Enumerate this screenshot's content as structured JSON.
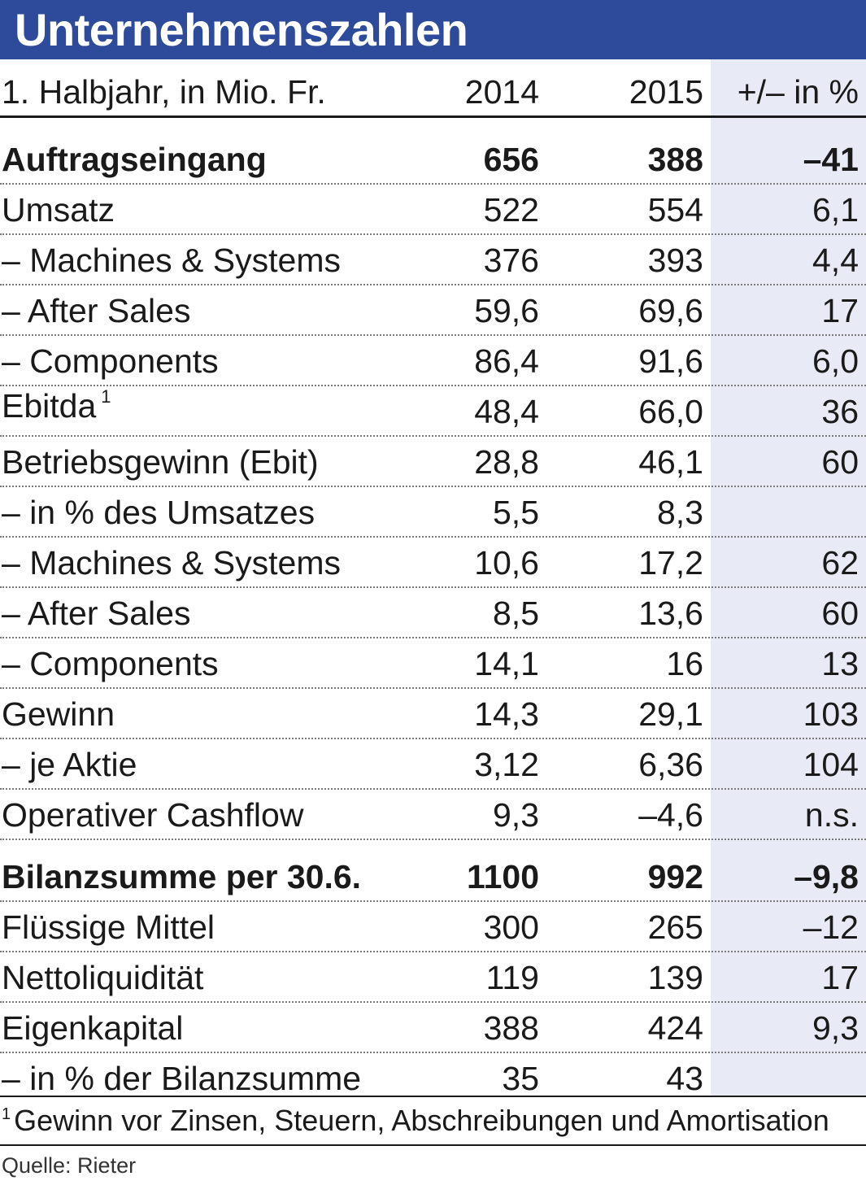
{
  "title": "Unternehmenszahlen",
  "header": {
    "label": "1. Halbjahr, in Mio. Fr.",
    "col_2014": "2014",
    "col_2015": "2015",
    "col_change": "+/– in %"
  },
  "rows": [
    {
      "label": "Auftragseingang",
      "v2014": "656",
      "v2015": "388",
      "change": "–41",
      "bold": true
    },
    {
      "label": "Umsatz",
      "v2014": "522",
      "v2015": "554",
      "change": "6,1"
    },
    {
      "label": "– Machines & Systems",
      "v2014": "376",
      "v2015": "393",
      "change": "4,4"
    },
    {
      "label": "– After Sales",
      "v2014": "59,6",
      "v2015": "69,6",
      "change": "17"
    },
    {
      "label": "– Components",
      "v2014": "86,4",
      "v2015": "91,6",
      "change": "6,0"
    },
    {
      "label": "Ebitda",
      "sup": "1",
      "v2014": "48,4",
      "v2015": "66,0",
      "change": "36"
    },
    {
      "label": "Betriebsgewinn (Ebit)",
      "v2014": "28,8",
      "v2015": "46,1",
      "change": "60"
    },
    {
      "label": "– in % des Umsatzes",
      "v2014": "5,5",
      "v2015": "8,3",
      "change": ""
    },
    {
      "label": "– Machines & Systems",
      "v2014": "10,6",
      "v2015": "17,2",
      "change": "62"
    },
    {
      "label": "– After Sales",
      "v2014": "8,5",
      "v2015": "13,6",
      "change": "60"
    },
    {
      "label": "– Components",
      "v2014": "14,1",
      "v2015": "16",
      "change": "13"
    },
    {
      "label": "Gewinn",
      "v2014": "14,3",
      "v2015": "29,1",
      "change": "103"
    },
    {
      "label": "– je Aktie",
      "v2014": "3,12",
      "v2015": "6,36",
      "change": "104"
    },
    {
      "label": "Operativer Cashflow",
      "v2014": "9,3",
      "v2015": "–4,6",
      "change": "n.s."
    },
    {
      "label": "Bilanzsumme per 30.6.",
      "v2014": "1100",
      "v2015": "992",
      "change": "–9,8",
      "bold": true
    },
    {
      "label": "Flüssige Mittel",
      "v2014": "300",
      "v2015": "265",
      "change": "–12"
    },
    {
      "label": "Nettoliquidität",
      "v2014": "119",
      "v2015": "139",
      "change": "17"
    },
    {
      "label": "Eigenkapital",
      "v2014": "388",
      "v2015": "424",
      "change": "9,3"
    },
    {
      "label": "– in % der Bilanzsumme",
      "v2014": "35",
      "v2015": "43",
      "change": ""
    }
  ],
  "footnote": {
    "marker": "1",
    "text": "Gewinn vor Zinsen, Steuern, Abschreibungen und Amortisation"
  },
  "source": "Quelle: Rieter",
  "colors": {
    "title_bar": "#2e4b9b",
    "change_column_shade": "#e8eaf5"
  }
}
